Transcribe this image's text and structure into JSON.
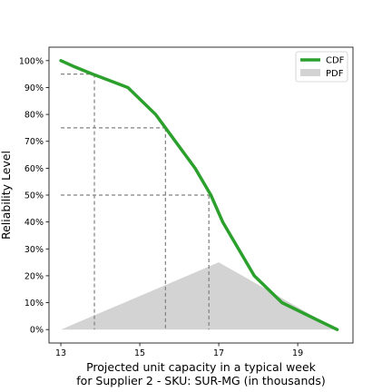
{
  "chart_data": {
    "type": "line",
    "xlabel_lines": [
      "Projected unit capacity in a typical week",
      "for Supplier 2 - SKU: SUR-MG (in thousands)"
    ],
    "ylabel": "Reliability Level",
    "xlim": [
      12.7,
      20.4
    ],
    "ylim": [
      -0.05,
      1.05
    ],
    "x_ticks": [
      13,
      15,
      17,
      19
    ],
    "y_ticks": [
      0,
      0.1,
      0.2,
      0.3,
      0.4,
      0.5,
      0.6,
      0.7,
      0.8,
      0.9,
      1.0
    ],
    "y_tick_labels": [
      "0%",
      "10%",
      "20%",
      "30%",
      "40%",
      "50%",
      "60%",
      "70%",
      "80%",
      "90%",
      "100%"
    ],
    "legend_position": "top-right",
    "series": [
      {
        "name": "CDF",
        "style": "line",
        "color": "#2ca02c",
        "points": [
          [
            13.0,
            1.0
          ],
          [
            13.3,
            0.98
          ],
          [
            13.8,
            0.95
          ],
          [
            14.7,
            0.9
          ],
          [
            15.4,
            0.8
          ],
          [
            15.9,
            0.7
          ],
          [
            16.4,
            0.6
          ],
          [
            16.8,
            0.5
          ],
          [
            17.1,
            0.4
          ],
          [
            17.5,
            0.3
          ],
          [
            17.9,
            0.2
          ],
          [
            18.6,
            0.1
          ],
          [
            19.3,
            0.05
          ],
          [
            20.0,
            0.0
          ]
        ]
      },
      {
        "name": "PDF",
        "style": "area",
        "color": "#d3d3d3",
        "points": [
          [
            13.0,
            0.0
          ],
          [
            17.0,
            0.25
          ],
          [
            20.0,
            0.0
          ]
        ]
      }
    ],
    "reference_lines": [
      {
        "level": 0.95,
        "x": 13.85
      },
      {
        "level": 0.75,
        "x": 15.65
      },
      {
        "level": 0.5,
        "x": 16.75
      }
    ],
    "reference_line_color": "#808080"
  }
}
